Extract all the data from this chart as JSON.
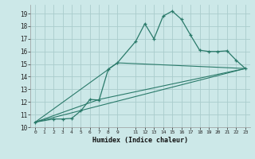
{
  "title": "",
  "xlabel": "Humidex (Indice chaleur)",
  "ylabel": "",
  "background_color": "#cce8e8",
  "grid_color": "#aacccc",
  "line_color": "#2a7a6a",
  "xlim": [
    -0.5,
    23.5
  ],
  "ylim": [
    10.0,
    19.7
  ],
  "yticks": [
    10,
    11,
    12,
    13,
    14,
    15,
    16,
    17,
    18,
    19
  ],
  "xticks": [
    0,
    1,
    2,
    3,
    4,
    5,
    6,
    7,
    8,
    9,
    11,
    12,
    13,
    14,
    15,
    16,
    17,
    18,
    19,
    20,
    21,
    22,
    23
  ],
  "line1_x": [
    0,
    2,
    3,
    4,
    5,
    6,
    7,
    8,
    9,
    11,
    12,
    13,
    14,
    15,
    16,
    17,
    18,
    19,
    20,
    21,
    22,
    23
  ],
  "line1_y": [
    10.4,
    10.65,
    10.65,
    10.7,
    11.3,
    12.2,
    12.15,
    14.6,
    15.1,
    16.8,
    18.2,
    17.0,
    18.8,
    19.2,
    18.55,
    17.3,
    16.1,
    16.0,
    16.0,
    16.05,
    15.3,
    14.65
  ],
  "line2_x": [
    0,
    23
  ],
  "line2_y": [
    10.4,
    14.65
  ],
  "line3_x": [
    0,
    7,
    23
  ],
  "line3_y": [
    10.4,
    12.2,
    14.65
  ],
  "line4_x": [
    0,
    9,
    23
  ],
  "line4_y": [
    10.4,
    15.1,
    14.65
  ]
}
